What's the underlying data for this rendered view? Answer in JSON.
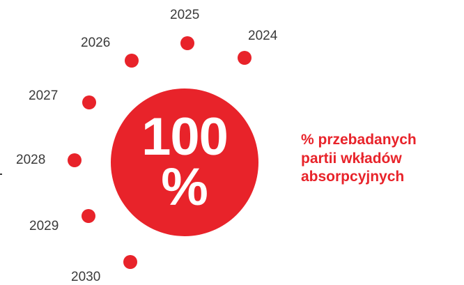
{
  "timeline": {
    "years": [
      "2025",
      "2024",
      "2026",
      "2027",
      "2028",
      "2029",
      "2030"
    ]
  },
  "center": {
    "value": "100",
    "unit": "%"
  },
  "description": {
    "lines": [
      "% przebadanych",
      "partii wkładów",
      "absorpcyjnych"
    ]
  },
  "colors": {
    "accent": "#e8232a",
    "text": "#3a3a3a"
  }
}
